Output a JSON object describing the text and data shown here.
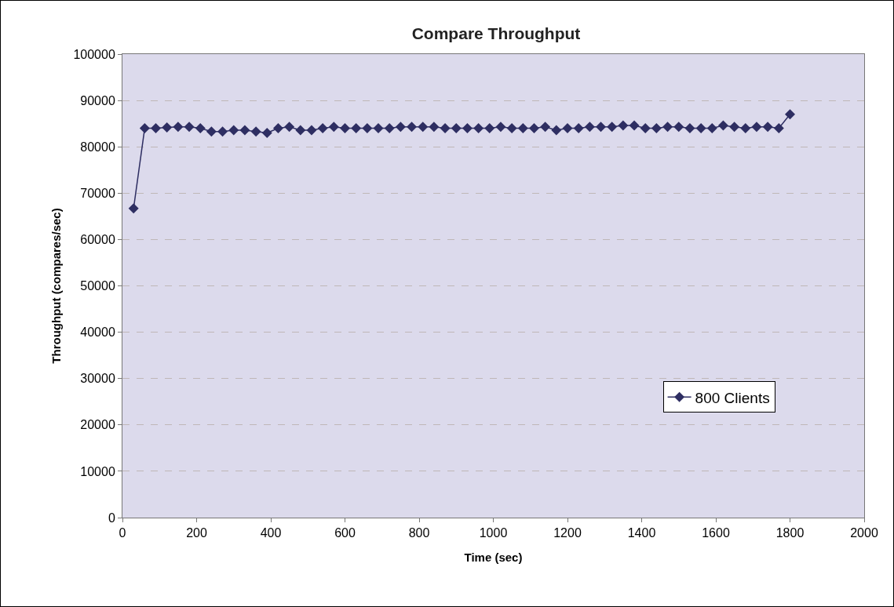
{
  "chart_data": {
    "type": "line",
    "title": "Compare Throughput",
    "xlabel": "Time (sec)",
    "ylabel": "Throughput (compares/sec)",
    "x": [
      30,
      60,
      90,
      120,
      150,
      180,
      210,
      240,
      270,
      300,
      330,
      360,
      390,
      420,
      450,
      480,
      510,
      540,
      570,
      600,
      630,
      660,
      690,
      720,
      750,
      780,
      810,
      840,
      870,
      900,
      930,
      960,
      990,
      1020,
      1050,
      1080,
      1110,
      1140,
      1170,
      1200,
      1230,
      1260,
      1290,
      1320,
      1350,
      1380,
      1410,
      1440,
      1470,
      1500,
      1530,
      1560,
      1590,
      1620,
      1650,
      1680,
      1710,
      1740,
      1770,
      1800
    ],
    "series": [
      {
        "name": "800 Clients",
        "color": "#2e2e62",
        "values": [
          66700,
          84000,
          84000,
          84200,
          84300,
          84300,
          84000,
          83300,
          83300,
          83600,
          83600,
          83300,
          83000,
          84000,
          84300,
          83600,
          83600,
          84000,
          84300,
          84000,
          84000,
          84000,
          84000,
          84000,
          84300,
          84300,
          84300,
          84300,
          84000,
          84000,
          84000,
          84000,
          84000,
          84300,
          84000,
          84000,
          84000,
          84300,
          83600,
          84000,
          84000,
          84300,
          84300,
          84300,
          84600,
          84600,
          84000,
          84000,
          84300,
          84300,
          84000,
          84000,
          84000,
          84600,
          84300,
          84000,
          84300,
          84300,
          84000,
          87000
        ]
      }
    ],
    "xlim": [
      0,
      2000
    ],
    "xticks": [
      0,
      200,
      400,
      600,
      800,
      1000,
      1200,
      1400,
      1600,
      1800,
      2000
    ],
    "ylim": [
      0,
      100000
    ],
    "yticks": [
      0,
      10000,
      20000,
      30000,
      40000,
      50000,
      60000,
      70000,
      80000,
      90000,
      100000
    ],
    "grid": "y",
    "legend": "right",
    "marker": "diamond",
    "line_style": "solid"
  }
}
